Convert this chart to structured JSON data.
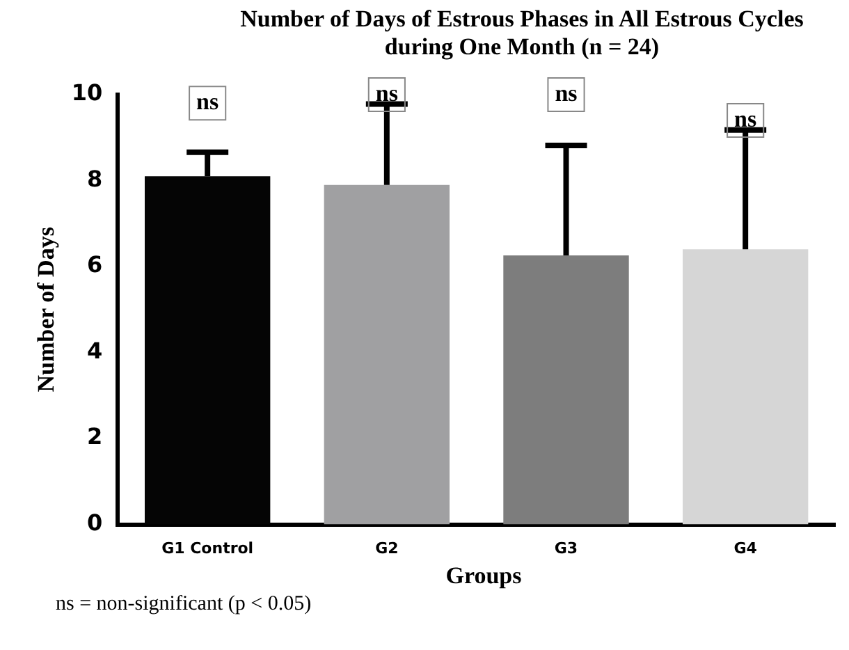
{
  "chart_data": {
    "type": "bar",
    "title": "Number of Days of Estrous Phases in All Estrous Cycles during One Month (n = 24)",
    "xlabel": "Groups",
    "ylabel": "Number of Days",
    "categories": [
      "G1 Control",
      "G2",
      "G3",
      "G4"
    ],
    "values": [
      8.1,
      7.9,
      6.26,
      6.4
    ],
    "colors": [
      "#050505",
      "#a0a0a2",
      "#7d7d7d",
      "#d6d6d6"
    ],
    "errors": [
      [
        8.1,
        8.66
      ],
      [
        7.9,
        9.78
      ],
      [
        6.26,
        8.82
      ],
      [
        6.4,
        9.18
      ]
    ],
    "ylim": [
      0,
      10
    ],
    "yticks": [
      0,
      2,
      4,
      6,
      8,
      10
    ],
    "grid": false,
    "legend": false,
    "annotations": [
      {
        "text": "ns",
        "x": "G1 Control",
        "y": 9.8
      },
      {
        "text": "ns",
        "x": "G2",
        "y": 10.0
      },
      {
        "text": "ns",
        "x": "G3",
        "y": 10.0
      },
      {
        "text": "ns",
        "x": "G4",
        "y": 9.4
      },
      "ns = non-significant (p < 0.05)"
    ]
  }
}
